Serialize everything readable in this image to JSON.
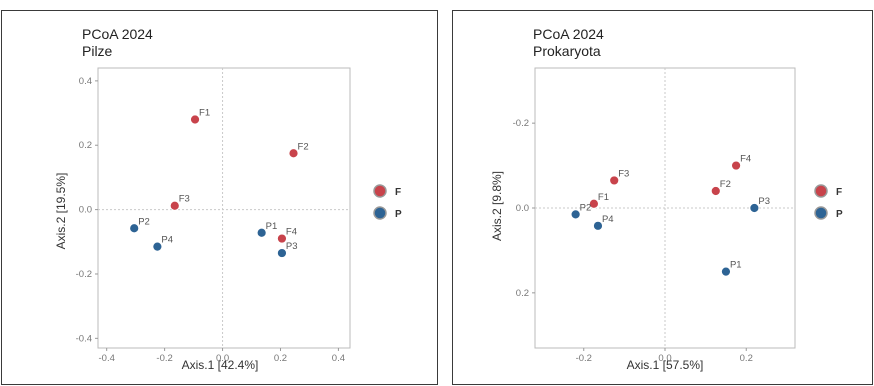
{
  "colors": {
    "F": "#c8434b",
    "P": "#2d6394"
  },
  "chart_data": [
    {
      "type": "scatter",
      "title": "PCoA 2024",
      "subtitle": "Pilze",
      "xlabel": "Axis.1   [42.4%]",
      "ylabel": "Axis.2   [19.5%]",
      "xlim": [
        -0.43,
        0.44
      ],
      "ylim": [
        -0.43,
        0.44
      ],
      "y_reversed": false,
      "x_ticks": [
        -0.4,
        -0.2,
        0.0,
        0.2,
        0.4
      ],
      "x_tick_labels": [
        "-0.4",
        "-0.2",
        "0.0",
        "0.2",
        "0.4"
      ],
      "y_ticks": [
        0.4,
        0.2,
        0.0,
        -0.2,
        -0.4
      ],
      "y_tick_labels": [
        "0.4",
        "0.2",
        "0.0",
        "-0.2",
        "-0.4"
      ],
      "grid": false,
      "zero_lines": true,
      "legend_placement": "right",
      "legend": [
        {
          "label": "F"
        },
        {
          "label": "P"
        }
      ],
      "points": [
        {
          "label": "F1",
          "group": "F",
          "x": -0.095,
          "y": 0.28
        },
        {
          "label": "F2",
          "group": "F",
          "x": 0.245,
          "y": 0.175
        },
        {
          "label": "F3",
          "group": "F",
          "x": -0.165,
          "y": 0.012
        },
        {
          "label": "F4",
          "group": "F",
          "x": 0.205,
          "y": -0.09
        },
        {
          "label": "P1",
          "group": "P",
          "x": 0.135,
          "y": -0.072
        },
        {
          "label": "P2",
          "group": "P",
          "x": -0.305,
          "y": -0.058
        },
        {
          "label": "P3",
          "group": "P",
          "x": 0.205,
          "y": -0.135
        },
        {
          "label": "P4",
          "group": "P",
          "x": -0.225,
          "y": -0.115
        }
      ]
    },
    {
      "type": "scatter",
      "title": "PCoA 2024",
      "subtitle": "Prokaryota",
      "xlabel": "Axis.1   [57.5%]",
      "ylabel": "Axis.2   [9.8%]",
      "xlim": [
        -0.32,
        0.32
      ],
      "ylim": [
        -0.33,
        0.33
      ],
      "y_reversed": true,
      "x_ticks": [
        -0.2,
        0.0,
        0.2
      ],
      "x_tick_labels": [
        "-0.2",
        "0.0",
        "0.2"
      ],
      "y_ticks": [
        -0.2,
        0.0,
        0.2
      ],
      "y_tick_labels": [
        "-0.2",
        "0.0",
        "0.2"
      ],
      "grid": false,
      "zero_lines": true,
      "legend_placement": "right",
      "legend": [
        {
          "label": "F"
        },
        {
          "label": "P"
        }
      ],
      "points": [
        {
          "label": "F1",
          "group": "F",
          "x": -0.175,
          "y": -0.01
        },
        {
          "label": "F2",
          "group": "F",
          "x": 0.125,
          "y": -0.04
        },
        {
          "label": "F3",
          "group": "F",
          "x": -0.125,
          "y": -0.065
        },
        {
          "label": "F4",
          "group": "F",
          "x": 0.175,
          "y": -0.1
        },
        {
          "label": "P1",
          "group": "P",
          "x": 0.15,
          "y": 0.15
        },
        {
          "label": "P2",
          "group": "P",
          "x": -0.22,
          "y": 0.015
        },
        {
          "label": "P3",
          "group": "P",
          "x": 0.22,
          "y": 0.0
        },
        {
          "label": "P4",
          "group": "P",
          "x": -0.165,
          "y": 0.042
        }
      ]
    }
  ]
}
